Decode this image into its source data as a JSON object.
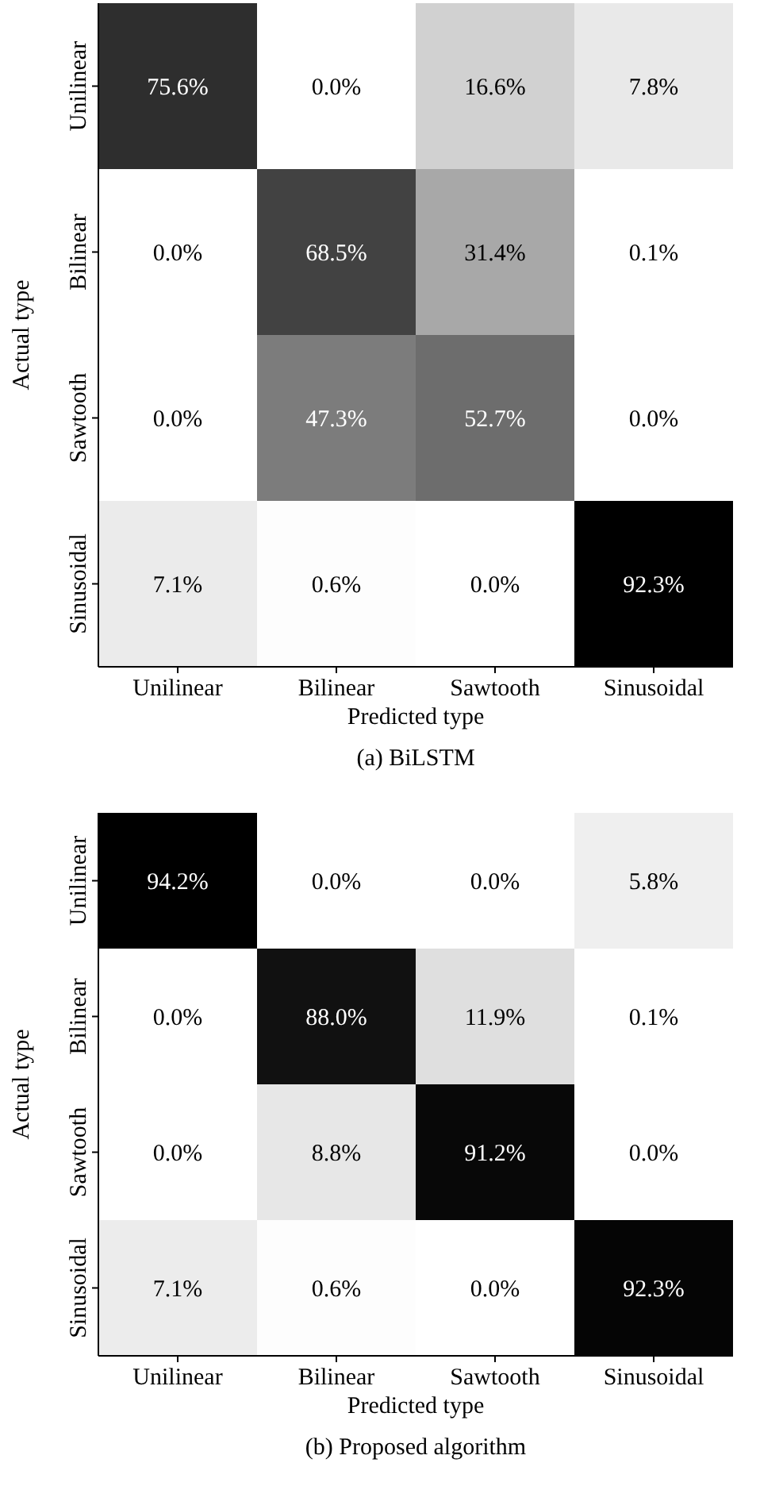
{
  "chart_data": [
    {
      "type": "heatmap",
      "title": "(a) BiLSTM",
      "xlabel": "Predicted type",
      "ylabel": "Actual type",
      "categories": [
        "Unilinear",
        "Bilinear",
        "Sawtooth",
        "Sinusoidal"
      ],
      "y_categories": [
        "Unilinear",
        "Bilinear",
        "Sawtooth",
        "Sinusoidal"
      ],
      "cells": [
        [
          75.6,
          0.0,
          16.6,
          7.8
        ],
        [
          0.0,
          68.5,
          31.4,
          0.1
        ],
        [
          0.0,
          47.3,
          52.7,
          0.0
        ],
        [
          7.1,
          0.6,
          0.0,
          92.3
        ]
      ],
      "cell_labels": [
        [
          "75.6%",
          "0.0%",
          "16.6%",
          "7.8%"
        ],
        [
          "0.0%",
          "68.5%",
          "31.4%",
          "0.1%"
        ],
        [
          "0.0%",
          "47.3%",
          "52.7%",
          "0.0%"
        ],
        [
          "7.1%",
          "0.6%",
          "0.0%",
          "92.3%"
        ]
      ]
    },
    {
      "type": "heatmap",
      "title": "(b) Proposed algorithm",
      "xlabel": "Predicted type",
      "ylabel": "Actual type",
      "categories": [
        "Unilinear",
        "Bilinear",
        "Sawtooth",
        "Sinusoidal"
      ],
      "y_categories": [
        "Unilinear",
        "Bilinear",
        "Sawtooth",
        "Sinusoidal"
      ],
      "cells": [
        [
          94.2,
          0.0,
          0.0,
          5.8
        ],
        [
          0.0,
          88.0,
          11.9,
          0.1
        ],
        [
          0.0,
          8.8,
          91.2,
          0.0
        ],
        [
          7.1,
          0.6,
          0.0,
          92.3
        ]
      ],
      "cell_labels": [
        [
          "94.2%",
          "0.0%",
          "0.0%",
          "5.8%"
        ],
        [
          "0.0%",
          "88.0%",
          "11.9%",
          "0.1%"
        ],
        [
          "0.0%",
          "8.8%",
          "91.2%",
          "0.0%"
        ],
        [
          "7.1%",
          "0.6%",
          "0.0%",
          "92.3%"
        ]
      ]
    }
  ]
}
